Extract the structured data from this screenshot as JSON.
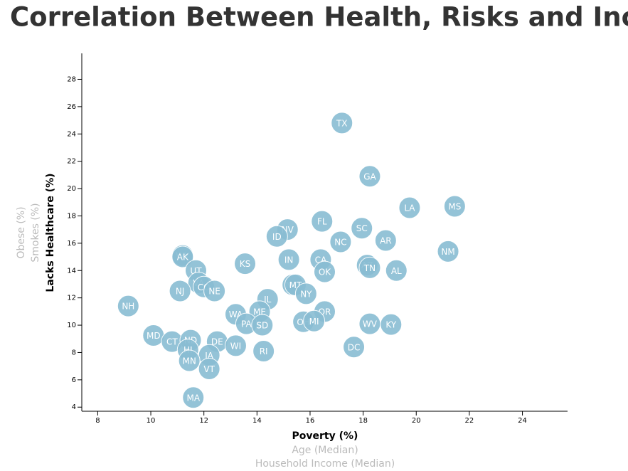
{
  "chart_data": {
    "type": "scatter",
    "title": "Correlation Between Health, Risks and Income",
    "x_axis_labels": [
      "Poverty (%)",
      "Age (Median)",
      "Household Income (Median)"
    ],
    "y_axis_labels": [
      "Lacks Healthcare (%)",
      "Smokes (%)",
      "Obese (%)"
    ],
    "color": "#89bdd3",
    "labels": [
      "TX",
      "GA",
      "LA",
      "MS",
      "NM",
      "FL",
      "SC",
      "AR",
      "NC",
      "NV",
      "ID",
      "AZ",
      "TN",
      "AL",
      "CA",
      "OK",
      "IN",
      "KS",
      "WY",
      "AK",
      "UT",
      "VA",
      "CO",
      "NE",
      "NJ",
      "MO",
      "MT",
      "NY",
      "IL",
      "NH",
      "WA",
      "ME",
      "OR",
      "PA",
      "SD",
      "OH",
      "MI",
      "WV",
      "KY",
      "MD",
      "CT",
      "ND",
      "DE",
      "WI",
      "HI",
      "IA",
      "RI",
      "DC",
      "MN",
      "VT",
      "MA"
    ],
    "x": [
      17.2,
      18.25,
      19.75,
      21.45,
      21.2,
      16.45,
      17.95,
      18.85,
      17.15,
      15.15,
      14.75,
      18.15,
      18.25,
      19.25,
      16.4,
      16.55,
      15.2,
      13.55,
      11.2,
      11.2,
      11.7,
      11.8,
      12.0,
      12.4,
      11.1,
      15.35,
      15.45,
      15.85,
      14.4,
      9.15,
      13.2,
      14.1,
      16.55,
      13.6,
      14.2,
      15.75,
      16.15,
      18.25,
      19.05,
      10.1,
      10.8,
      11.5,
      12.5,
      13.2,
      11.4,
      12.2,
      14.25,
      17.65,
      11.45,
      12.2,
      11.6
    ],
    "y": [
      24.8,
      20.9,
      18.6,
      18.7,
      15.4,
      17.6,
      17.1,
      16.2,
      16.1,
      17.0,
      16.5,
      14.4,
      14.2,
      14.0,
      14.8,
      13.9,
      14.8,
      14.5,
      15.1,
      15.0,
      14.0,
      13.1,
      12.8,
      12.5,
      12.5,
      12.95,
      12.95,
      12.3,
      11.9,
      11.4,
      10.8,
      11.0,
      11.0,
      10.1,
      10.0,
      10.25,
      10.3,
      10.1,
      10.05,
      9.25,
      8.8,
      8.9,
      8.8,
      8.5,
      8.2,
      7.8,
      8.1,
      8.4,
      7.4,
      6.8,
      4.7
    ],
    "xlim": [
      7.4,
      25.7
    ],
    "ylim": [
      3.7,
      29.9
    ],
    "xticks": [
      8,
      10,
      12,
      14,
      16,
      18,
      20,
      22,
      24
    ],
    "yticks": [
      4,
      6,
      8,
      10,
      12,
      14,
      16,
      18,
      20,
      22,
      24,
      26,
      28
    ]
  }
}
